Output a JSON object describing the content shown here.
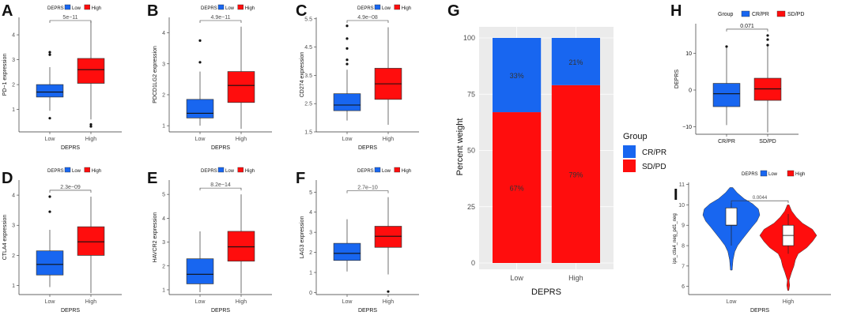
{
  "colors": {
    "low": "#1866F0",
    "high": "#FF0D0D",
    "box_stroke": "#333333",
    "panel_bg": "#EBEBEB",
    "grid": "#FFFFFF"
  },
  "boxplots": [
    {
      "letter": "A",
      "legend_title": "DEPRS",
      "legend_labels": [
        "Low",
        "High"
      ],
      "ylabel": "PD−1 expression",
      "xlabel": "DEPRS",
      "categories": [
        "Low",
        "High"
      ],
      "pvalue": "5e−11",
      "ylim": [
        0.1,
        4.7
      ],
      "yticks": [
        1,
        2,
        3,
        4
      ],
      "groups": [
        {
          "q1": 1.5,
          "median": 1.7,
          "q3": 2.0,
          "wlo": 0.95,
          "whi": 2.7,
          "outliers": [
            3.3,
            3.2,
            0.65
          ]
        },
        {
          "q1": 2.05,
          "median": 2.6,
          "q3": 3.05,
          "wlo": 0.6,
          "whi": 4.55,
          "outliers": [
            0.4,
            0.32
          ]
        }
      ]
    },
    {
      "letter": "B",
      "legend_title": "DEPRS",
      "legend_labels": [
        "Low",
        "High"
      ],
      "ylabel": "PDCD1LG2 expression",
      "xlabel": "DEPRS",
      "categories": [
        "Low",
        "High"
      ],
      "pvalue": "4.9e−11",
      "ylim": [
        0.8,
        4.5
      ],
      "yticks": [
        1,
        2,
        3,
        4
      ],
      "groups": [
        {
          "q1": 1.25,
          "median": 1.4,
          "q3": 1.85,
          "wlo": 1.0,
          "whi": 2.75,
          "outliers": [
            3.75,
            3.05
          ]
        },
        {
          "q1": 1.75,
          "median": 2.3,
          "q3": 2.75,
          "wlo": 0.9,
          "whi": 4.2,
          "outliers": []
        }
      ]
    },
    {
      "letter": "C",
      "legend_title": "DEPRS",
      "legend_labels": [
        "Low",
        "High"
      ],
      "ylabel": "CD274 expression",
      "xlabel": "DEPRS",
      "categories": [
        "Low",
        "High"
      ],
      "pvalue": "4.9e−08",
      "ylim": [
        1.5,
        5.55
      ],
      "yticks": [
        1.5,
        2.5,
        3.5,
        4.5,
        5.5
      ],
      "groups": [
        {
          "q1": 2.25,
          "median": 2.45,
          "q3": 2.85,
          "wlo": 1.9,
          "whi": 3.7,
          "outliers": [
            5.25,
            4.8,
            4.45,
            4.05,
            3.9
          ]
        },
        {
          "q1": 2.65,
          "median": 3.2,
          "q3": 3.75,
          "wlo": 1.75,
          "whi": 5.2,
          "outliers": []
        }
      ]
    },
    {
      "letter": "D",
      "legend_title": "DEPRS",
      "legend_labels": [
        "Low",
        "High"
      ],
      "ylabel": "CTLA4 expression",
      "xlabel": "DEPRS",
      "categories": [
        "Low",
        "High"
      ],
      "pvalue": "2.3e−09",
      "ylim": [
        0.7,
        4.5
      ],
      "yticks": [
        1,
        2,
        3,
        4
      ],
      "groups": [
        {
          "q1": 1.35,
          "median": 1.7,
          "q3": 2.15,
          "wlo": 0.95,
          "whi": 2.85,
          "outliers": [
            3.95,
            3.45
          ]
        },
        {
          "q1": 2.0,
          "median": 2.45,
          "q3": 2.95,
          "wlo": 0.75,
          "whi": 3.95,
          "outliers": []
        }
      ]
    },
    {
      "letter": "E",
      "legend_title": "DEPRS",
      "legend_labels": [
        "Low",
        "High"
      ],
      "ylabel": "HAVCR2 expression",
      "xlabel": "DEPRS",
      "categories": [
        "Low",
        "High"
      ],
      "pvalue": "8.2e−14",
      "ylim": [
        0.8,
        5.6
      ],
      "yticks": [
        1,
        2,
        3,
        4,
        5
      ],
      "groups": [
        {
          "q1": 1.25,
          "median": 1.65,
          "q3": 2.3,
          "wlo": 0.9,
          "whi": 3.45,
          "outliers": []
        },
        {
          "q1": 2.2,
          "median": 2.8,
          "q3": 3.45,
          "wlo": 0.85,
          "whi": 5.0,
          "outliers": []
        }
      ]
    },
    {
      "letter": "F",
      "legend_title": "DEPRS",
      "legend_labels": [
        "Low",
        "High"
      ],
      "ylabel": "LAG3 expression",
      "xlabel": "DEPRS",
      "categories": [
        "Low",
        "High"
      ],
      "pvalue": "2.7e−10",
      "ylim": [
        -0.1,
        5.6
      ],
      "yticks": [
        0,
        1,
        2,
        3,
        4,
        5
      ],
      "groups": [
        {
          "q1": 1.6,
          "median": 1.95,
          "q3": 2.45,
          "wlo": 1.05,
          "whi": 3.65,
          "outliers": []
        },
        {
          "q1": 2.25,
          "median": 2.8,
          "q3": 3.3,
          "wlo": 0.9,
          "whi": 4.75,
          "outliers": [
            0.05
          ]
        }
      ]
    },
    {
      "letter": "H",
      "legend_title": "Group",
      "legend_labels": [
        "CR/PR",
        "SD/PD"
      ],
      "ylabel": "DEPRS",
      "xlabel": "",
      "categories": [
        "CR/PR",
        "SD/PD"
      ],
      "pvalue": "0.071",
      "ylim": [
        -12,
        18
      ],
      "yticks": [
        -10,
        0,
        10
      ],
      "groups": [
        {
          "q1": -4.5,
          "median": -1.0,
          "q3": 1.8,
          "wlo": -9.5,
          "whi": 11.8,
          "outliers": [
            11.8
          ]
        },
        {
          "q1": -2.8,
          "median": 0.3,
          "q3": 3.2,
          "wlo": -11.5,
          "whi": 12.0,
          "outliers": [
            14.8,
            13.7,
            12.2
          ]
        }
      ]
    }
  ],
  "stacked_bar": {
    "letter": "G",
    "type": "bar",
    "stacked": true,
    "categories": [
      "Low",
      "High"
    ],
    "series": [
      {
        "name": "SD/PD",
        "values": [
          67,
          79
        ],
        "labels": [
          "67%",
          "79%"
        ]
      },
      {
        "name": "CR/PR",
        "values": [
          33,
          21
        ],
        "labels": [
          "33%",
          "21%"
        ]
      }
    ],
    "xlabel": "DEPRS",
    "ylabel": "Percent weight",
    "ylim": [
      0,
      100
    ],
    "yticks": [
      0,
      25,
      50,
      75,
      100
    ],
    "legend_title": "Group",
    "legend_labels": [
      "CR/PR",
      "SD/PD"
    ]
  },
  "violin": {
    "letter": "I",
    "legend_title": "DEPRS",
    "legend_labels": [
      "Low",
      "High"
    ],
    "ylabel": "ips_ctla4_neg_pd1_neg",
    "xlabel": "DEPRS",
    "categories": [
      "Low",
      "High"
    ],
    "pvalue": "0.0044",
    "ylim": [
      5.6,
      11.1
    ],
    "yticks": [
      6,
      7,
      8,
      9,
      10,
      11
    ],
    "groups": [
      {
        "q1": 9.0,
        "median": 9.0,
        "q3": 9.85,
        "wlo": 8.0,
        "whi": 10.1,
        "density": [
          [
            6.8,
            0.03
          ],
          [
            7.3,
            0.06
          ],
          [
            7.7,
            0.12
          ],
          [
            8.0,
            0.22
          ],
          [
            8.3,
            0.38
          ],
          [
            8.6,
            0.55
          ],
          [
            8.9,
            0.72
          ],
          [
            9.2,
            0.9
          ],
          [
            9.5,
            1.0
          ],
          [
            9.8,
            0.95
          ],
          [
            10.05,
            0.75
          ],
          [
            10.3,
            0.45
          ],
          [
            10.6,
            0.2
          ],
          [
            10.85,
            0.05
          ]
        ]
      },
      {
        "q1": 8.0,
        "median": 8.5,
        "q3": 9.0,
        "wlo": 7.6,
        "whi": 9.55,
        "density": [
          [
            5.8,
            0.02
          ],
          [
            6.05,
            0.05
          ],
          [
            6.3,
            0.03
          ],
          [
            6.7,
            0.12
          ],
          [
            7.0,
            0.2
          ],
          [
            7.3,
            0.25
          ],
          [
            7.6,
            0.35
          ],
          [
            7.9,
            0.65
          ],
          [
            8.2,
            0.85
          ],
          [
            8.5,
            1.0
          ],
          [
            8.8,
            0.85
          ],
          [
            9.1,
            0.5
          ],
          [
            9.4,
            0.28
          ],
          [
            9.7,
            0.12
          ],
          [
            10.0,
            0.03
          ]
        ]
      }
    ]
  }
}
